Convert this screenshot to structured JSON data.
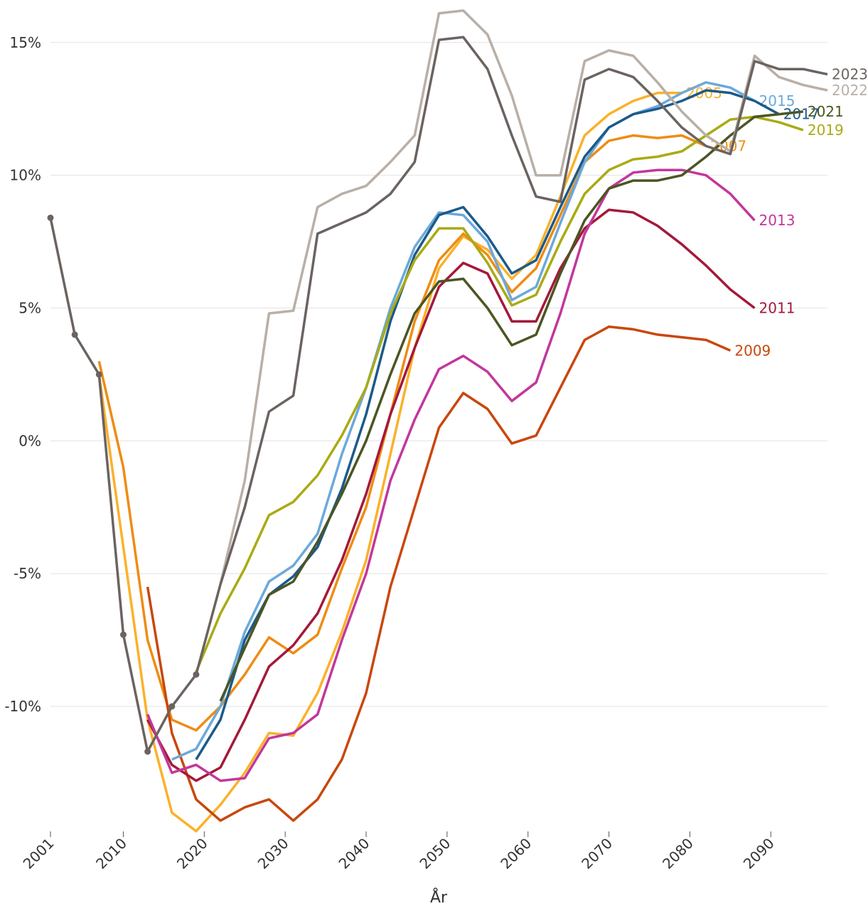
{
  "chart_data": {
    "type": "line",
    "x_label": "År",
    "x": [
      2001,
      2004,
      2007,
      2010,
      2013,
      2016,
      2019,
      2022,
      2025,
      2028,
      2031,
      2034,
      2037,
      2040,
      2043,
      2046,
      2049,
      2052,
      2055,
      2058,
      2061,
      2064,
      2067,
      2070,
      2073,
      2076,
      2079,
      2082,
      2085,
      2088,
      2091,
      2094,
      2097
    ],
    "xlim": [
      2001,
      2097
    ],
    "xticks": [
      2001,
      2010,
      2020,
      2030,
      2040,
      2050,
      2060,
      2070,
      2080,
      2090
    ],
    "ylim": [
      -14.6,
      16.6
    ],
    "yticks": [
      {
        "value": -10,
        "label": "-10%"
      },
      {
        "value": -5,
        "label": "-5%"
      },
      {
        "value": 0,
        "label": "0%"
      },
      {
        "value": 5,
        "label": "5%"
      },
      {
        "value": 10,
        "label": "10%"
      },
      {
        "value": 15,
        "label": "15%"
      }
    ],
    "grid": true,
    "series": [
      {
        "name": "2005",
        "color": "#fbb12a",
        "values": [
          null,
          null,
          2.5,
          -4,
          -10.5,
          -14,
          -14.7,
          -13.7,
          -12.5,
          -11,
          -11.1,
          -9.5,
          -7.2,
          -4.5,
          -0.5,
          3.5,
          6.5,
          7.7,
          7.2,
          6.1,
          7,
          9.2,
          11.5,
          12.3,
          12.8,
          13.1,
          13.1,
          null,
          null,
          null,
          null,
          null,
          null
        ]
      },
      {
        "name": "2007",
        "color": "#ee8c14",
        "values": [
          null,
          null,
          3,
          -1,
          -7.5,
          -10.5,
          -10.9,
          -10,
          -8.8,
          -7.4,
          -8,
          -7.3,
          -4.8,
          -2.5,
          1,
          4.5,
          6.8,
          7.8,
          7,
          5.6,
          6.5,
          8.5,
          10.5,
          11.3,
          11.5,
          11.4,
          11.5,
          11.1,
          null,
          null,
          null,
          null,
          null
        ]
      },
      {
        "name": "2009",
        "color": "#c9470c",
        "values": [
          null,
          null,
          null,
          null,
          -5.5,
          -11,
          -13.5,
          -14.3,
          -13.8,
          -13.5,
          -14.3,
          -13.5,
          -12,
          -9.5,
          -5.5,
          -2.5,
          0.5,
          1.8,
          1.2,
          -0.1,
          0.2,
          2,
          3.8,
          4.3,
          4.2,
          4,
          3.9,
          3.8,
          3.4,
          null,
          null,
          null,
          null
        ]
      },
      {
        "name": "2011",
        "color": "#a3193a",
        "values": [
          null,
          null,
          null,
          null,
          -10.5,
          -12.2,
          -12.8,
          -12.3,
          -10.5,
          -8.5,
          -7.7,
          -6.5,
          -4.5,
          -2,
          1,
          3.5,
          5.8,
          6.7,
          6.3,
          4.5,
          4.5,
          6.5,
          8,
          8.7,
          8.6,
          8.1,
          7.4,
          6.6,
          5.7,
          5.0,
          null,
          null,
          null
        ]
      },
      {
        "name": "2013",
        "color": "#c2379b",
        "values": [
          null,
          null,
          null,
          null,
          -10.3,
          -12.5,
          -12.2,
          -12.8,
          -12.7,
          -11.2,
          -11,
          -10.3,
          -7.5,
          -5,
          -1.5,
          0.8,
          2.7,
          3.2,
          2.6,
          1.5,
          2.2,
          4.8,
          7.8,
          9.5,
          10.1,
          10.2,
          10.2,
          10,
          9.3,
          8.3,
          null,
          null,
          null
        ]
      },
      {
        "name": "2015",
        "color": "#6ba9db",
        "values": [
          null,
          null,
          null,
          null,
          null,
          -12,
          -11.6,
          -10,
          -7.2,
          -5.3,
          -4.7,
          -3.5,
          -0.5,
          2,
          5,
          7.3,
          8.6,
          8.5,
          7.5,
          5.3,
          5.8,
          8.2,
          10.5,
          11.8,
          12.3,
          12.6,
          13.1,
          13.5,
          13.3,
          12.8,
          null,
          null,
          null
        ]
      },
      {
        "name": "2017",
        "color": "#1b5a8a",
        "values": [
          null,
          null,
          null,
          null,
          null,
          null,
          -12,
          -10.5,
          -7.5,
          -5.8,
          -5.1,
          -4,
          -1.8,
          1,
          4.5,
          7,
          8.5,
          8.8,
          7.7,
          6.3,
          6.8,
          8.8,
          10.7,
          11.8,
          12.3,
          12.5,
          12.8,
          13.2,
          13.1,
          12.8,
          12.3,
          null,
          null
        ]
      },
      {
        "name": "2019",
        "color": "#aaaa14",
        "values": [
          null,
          null,
          null,
          null,
          null,
          null,
          -8.7,
          -6.5,
          -4.8,
          -2.8,
          -2.3,
          -1.3,
          0.2,
          2,
          4.8,
          6.8,
          8,
          8,
          6.7,
          5.1,
          5.5,
          7.5,
          9.3,
          10.2,
          10.6,
          10.7,
          10.9,
          11.5,
          12.1,
          12.2,
          12,
          11.7,
          null
        ]
      },
      {
        "name": "2021",
        "color": "#4b5522",
        "values": [
          null,
          null,
          null,
          null,
          null,
          null,
          null,
          -9.8,
          -7.8,
          -5.8,
          -5.3,
          -3.8,
          -2,
          0,
          2.5,
          4.8,
          6,
          6.1,
          5,
          3.6,
          4,
          6.3,
          8.3,
          9.5,
          9.8,
          9.8,
          10,
          10.7,
          11.5,
          12.2,
          12.3,
          12.4,
          null
        ]
      },
      {
        "name": "2022",
        "color": "#b9afa6",
        "values": [
          null,
          null,
          null,
          null,
          null,
          null,
          null,
          -5.4,
          -1.5,
          4.8,
          4.9,
          8.8,
          9.3,
          9.6,
          10.5,
          11.5,
          16.1,
          16.2,
          15.3,
          13,
          10,
          10,
          14.3,
          14.7,
          14.5,
          13.5,
          12.4,
          11.5,
          10.9,
          14.5,
          13.7,
          13.4,
          13.2
        ]
      },
      {
        "name": "2023",
        "color": "#6b6360",
        "values": [
          8.4,
          4,
          2.5,
          -7.3,
          -11.7,
          -10,
          -8.8,
          -5.4,
          -2.5,
          1.1,
          1.7,
          7.8,
          8.2,
          8.6,
          9.3,
          10.5,
          15.1,
          15.2,
          14,
          11.5,
          9.2,
          9,
          13.6,
          14,
          13.7,
          12.8,
          11.8,
          11.1,
          10.8,
          14.3,
          14,
          14,
          13.8
        ]
      }
    ]
  }
}
